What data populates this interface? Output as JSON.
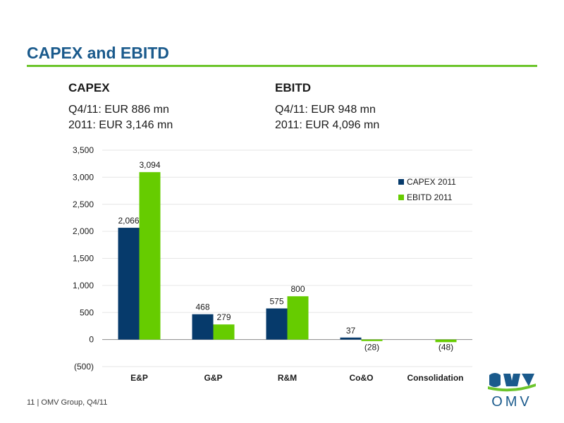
{
  "slide": {
    "title": "CAPEX and EBITD",
    "footer": "11 | OMV Group, Q4/11",
    "logo_text": "OMV"
  },
  "kpis": {
    "capex": {
      "heading": "CAPEX",
      "q4": "Q4/11: EUR 886 mn",
      "year": "2011: EUR 3,146 mn"
    },
    "ebitd": {
      "heading": "EBITD",
      "q4": "Q4/11: EUR 948 mn",
      "year": "2011: EUR 4,096 mn"
    }
  },
  "colors": {
    "capex": "#063a6b",
    "ebitd": "#66cc00",
    "title": "#1a5a8c",
    "rule": "#6cc52b"
  },
  "chart_data": {
    "type": "bar",
    "categories": [
      "E&P",
      "G&P",
      "R&M",
      "Co&O",
      "Consolidation"
    ],
    "series": [
      {
        "name": "CAPEX 2011",
        "values": [
          2066,
          468,
          575,
          37,
          null
        ],
        "labels": [
          "2,066",
          "468",
          "575",
          "37",
          ""
        ]
      },
      {
        "name": "EBITD 2011",
        "values": [
          3094,
          279,
          800,
          -28,
          -48
        ],
        "labels": [
          "3,094",
          "279",
          "800",
          "(28)",
          "(48)"
        ]
      }
    ],
    "ylim": [
      -500,
      3500
    ],
    "yticks": [
      -500,
      0,
      500,
      1000,
      1500,
      2000,
      2500,
      3000,
      3500
    ],
    "ytick_labels": [
      "(500)",
      "0",
      "500",
      "1,000",
      "1,500",
      "2,000",
      "2,500",
      "3,000",
      "3,500"
    ],
    "legend_position": "top-right",
    "grid": true
  }
}
